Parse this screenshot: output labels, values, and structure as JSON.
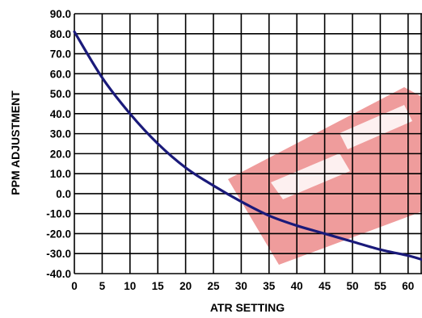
{
  "chart_data": {
    "type": "line",
    "title": "",
    "xlabel": "ATR SETTING",
    "ylabel": "PPM ADJUSTMENT",
    "xlim": [
      0,
      62.5
    ],
    "ylim": [
      -40,
      90
    ],
    "xticks": [
      0,
      5,
      10,
      15,
      20,
      25,
      30,
      35,
      40,
      45,
      50,
      55,
      60
    ],
    "yticks": [
      90,
      80,
      70,
      60,
      50,
      40,
      30,
      20,
      10,
      0,
      -10,
      -20,
      -30,
      -40
    ],
    "ytick_labels": [
      "90.0",
      "80.0",
      "70.0",
      "60.0",
      "50.0",
      "40.0",
      "30.0",
      "20.0",
      "10.0",
      "0.0",
      "-10.0",
      "-20.0",
      "-30.0",
      "-40.0"
    ],
    "grid": true,
    "line_color": "#1a1a7a",
    "watermark_color": "#e24b4b",
    "series": [
      {
        "x": [
          0,
          5,
          10,
          15,
          20,
          25,
          30,
          35,
          40,
          45,
          50,
          55,
          60,
          62.5
        ],
        "y": [
          81,
          58,
          40,
          25,
          13,
          4,
          -4,
          -11,
          -16,
          -20,
          -24,
          -28,
          -31,
          -33
        ]
      }
    ]
  }
}
